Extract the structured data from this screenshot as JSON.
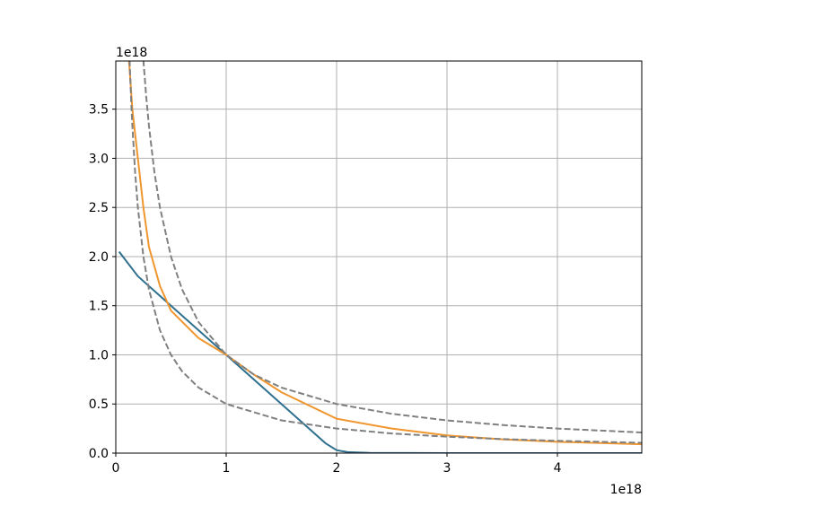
{
  "chart_data": {
    "type": "line",
    "x_offset_label": "1e18",
    "y_offset_label": "1e18",
    "xlim": [
      0,
      4.764
    ],
    "ylim": [
      0,
      3.99
    ],
    "xticks": [
      0,
      1,
      2,
      3,
      4
    ],
    "yticks": [
      {
        "value": 0,
        "label": "0.0"
      },
      {
        "value": 0.5,
        "label": "0.5"
      },
      {
        "value": 1,
        "label": "1.0"
      },
      {
        "value": 1.5,
        "label": "1.5"
      },
      {
        "value": 2,
        "label": "2.0"
      },
      {
        "value": 2.5,
        "label": "2.5"
      },
      {
        "value": 3,
        "label": "3.0"
      },
      {
        "value": 3.5,
        "label": "3.5"
      }
    ],
    "grid": true,
    "series": [
      {
        "color": "#30708f",
        "dashed": false,
        "x": [
          0.03,
          0.2,
          0.5,
          1,
          1.5,
          1.75,
          1.9,
          2.0,
          2.1,
          2.3,
          3,
          4.764
        ],
        "values": [
          2.05,
          1.8,
          1.5,
          1.0,
          0.5,
          0.25,
          0.1,
          0.03,
          0.01,
          0.002,
          0,
          0
        ]
      },
      {
        "color": "#f0962e",
        "dashed": false,
        "x": [
          0.12,
          0.15,
          0.2,
          0.25,
          0.3,
          0.4,
          0.5,
          0.75,
          1,
          1.25,
          1.5,
          2,
          2.5,
          3,
          3.5,
          4,
          4.764
        ],
        "values": [
          3.99,
          3.5,
          3.0,
          2.5,
          2.1,
          1.7,
          1.45,
          1.17,
          1.0,
          0.8,
          0.62,
          0.35,
          0.25,
          0.18,
          0.14,
          0.115,
          0.09
        ]
      },
      {
        "color": "#808080",
        "dashed": true,
        "x": [
          0.25,
          0.275,
          0.3,
          0.35,
          0.4,
          0.5,
          0.6,
          0.75,
          1,
          1.25,
          1.5,
          2,
          2.5,
          3,
          3.5,
          4,
          4.764
        ],
        "values": [
          4,
          3.636,
          3.333,
          2.857,
          2.5,
          2,
          1.667,
          1.333,
          1,
          0.8,
          0.667,
          0.5,
          0.4,
          0.333,
          0.286,
          0.25,
          0.21
        ]
      },
      {
        "color": "#808080",
        "dashed": true,
        "x": [
          0.125,
          0.14,
          0.15,
          0.175,
          0.2,
          0.25,
          0.3,
          0.4,
          0.5,
          0.6,
          0.75,
          1,
          1.5,
          2,
          2.5,
          3,
          3.5,
          4,
          4.764
        ],
        "values": [
          4,
          3.571,
          3.333,
          2.857,
          2.5,
          2,
          1.667,
          1.25,
          1,
          0.833,
          0.667,
          0.5,
          0.333,
          0.25,
          0.2,
          0.167,
          0.143,
          0.125,
          0.105
        ]
      }
    ]
  }
}
